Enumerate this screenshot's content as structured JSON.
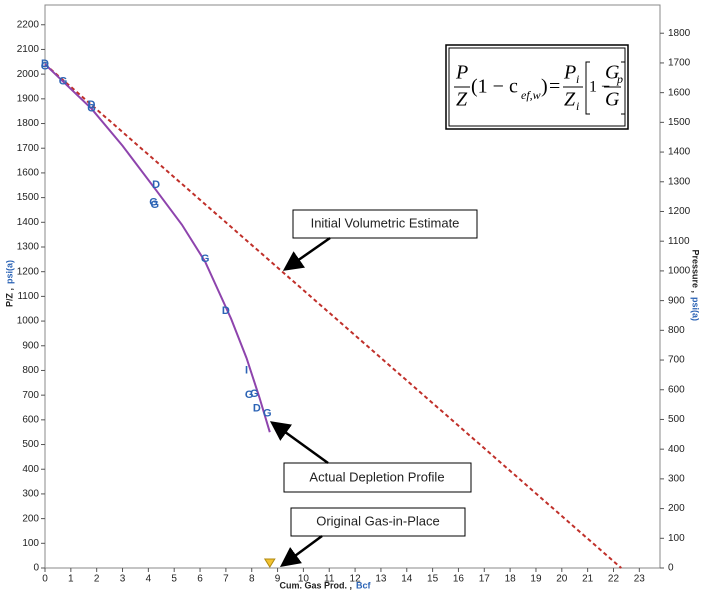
{
  "chart_data": {
    "type": "line",
    "x_label": "Cum. Gas Prod. ,",
    "x_label_unit": "Bcf",
    "y_label": "P/Z ,",
    "y_label_unit": "psi(a)",
    "y2_label": "Pressure ,",
    "y2_label_unit": "psi(a)",
    "xlim": [
      0,
      23.8
    ],
    "ylim": [
      0,
      2280
    ],
    "y2lim": [
      0,
      1895
    ],
    "xticks": [
      0,
      1,
      2,
      3,
      4,
      5,
      6,
      7,
      8,
      9,
      10,
      11,
      12,
      13,
      14,
      15,
      16,
      17,
      18,
      19,
      20,
      21,
      22,
      23
    ],
    "yticks": [
      0,
      100,
      200,
      300,
      400,
      500,
      600,
      700,
      800,
      900,
      1000,
      1100,
      1200,
      1300,
      1400,
      1500,
      1600,
      1700,
      1800,
      1900,
      2000,
      2100,
      2200
    ],
    "y2ticks": [
      0,
      100,
      200,
      300,
      400,
      500,
      600,
      700,
      800,
      900,
      1000,
      1100,
      1200,
      1300,
      1400,
      1500,
      1600,
      1700,
      1800
    ],
    "series": [
      {
        "x": [
          0,
          22.3
        ],
        "values": [
          2040,
          0
        ],
        "color": "#c0302a",
        "dash": true
      },
      {
        "x": [
          0,
          0.7,
          1.8,
          3,
          4.3,
          5.3,
          6.2,
          7.2,
          7.8,
          8.3,
          8.7
        ],
        "values": [
          2040,
          1970,
          1860,
          1710,
          1530,
          1390,
          1240,
          1010,
          850,
          690,
          550
        ],
        "color": "#8e44ad",
        "dash": false
      }
    ],
    "points": {
      "x": [
        0,
        0,
        0.7,
        1.8,
        1.8,
        4.3,
        4.2,
        4.25,
        6.2,
        7,
        7.8,
        7.9,
        8.1,
        8.2,
        8.6
      ],
      "values": [
        2040,
        2030,
        1970,
        1875,
        1860,
        1550,
        1480,
        1470,
        1250,
        1040,
        800,
        700,
        705,
        645,
        625
      ],
      "labels": [
        "D",
        "G",
        "G",
        "D",
        "G",
        "D",
        "G",
        "G",
        "G",
        "D",
        "I",
        "G",
        "G",
        "D",
        "G"
      ],
      "color": "#2b63b5"
    },
    "ogip_marker": {
      "x": 8.7,
      "color": "#f2c230"
    },
    "annotations": {
      "initial": "Initial Volumetric Estimate",
      "actual": "Actual Depletion Profile",
      "ogip": "Original Gas-in-Place"
    },
    "equation": {
      "lhs_num": "P",
      "lhs_den": "Z",
      "factor": "(1 − c",
      "factor_sub": "ef,w",
      "close": ")",
      "eq": "=",
      "rhs_num": "P",
      "rhs_num_sub": "i",
      "rhs_den": "Z",
      "rhs_den_sub": "i",
      "one": "1 −",
      "frac_num": "G",
      "frac_num_sub": "p",
      "frac_den": "G"
    }
  }
}
